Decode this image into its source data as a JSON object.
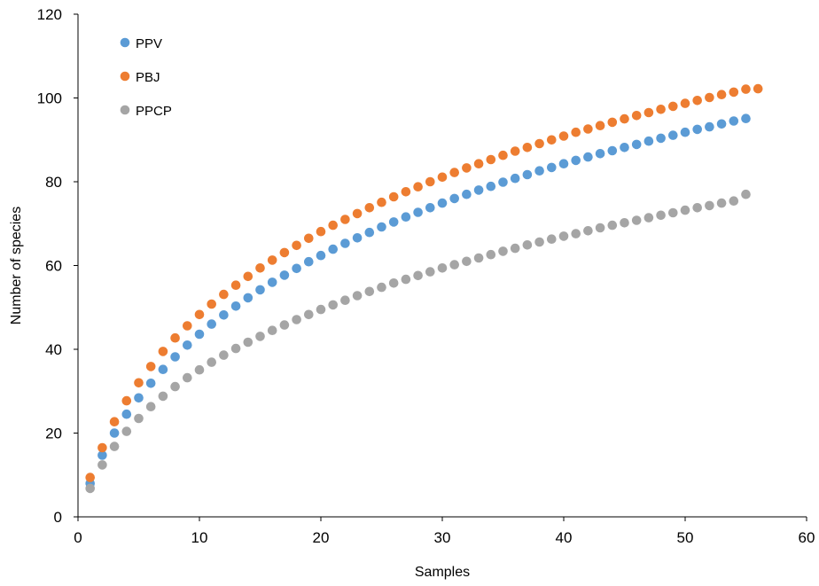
{
  "chart_data": {
    "type": "scatter",
    "xlabel": "Samples",
    "ylabel": "Number of species",
    "xlim": [
      0,
      60
    ],
    "ylim": [
      0,
      120
    ],
    "x_ticks": [
      "0",
      "10",
      "20",
      "30",
      "40",
      "50",
      "60"
    ],
    "y_ticks": [
      "0",
      "20",
      "40",
      "60",
      "80",
      "100",
      "120"
    ],
    "grid": false,
    "legend_position": "top-left",
    "series": [
      {
        "name": "PPV",
        "color": "#5B9BD5",
        "x": [
          1,
          2,
          3,
          4,
          5,
          6,
          7,
          8,
          9,
          10,
          11,
          12,
          13,
          14,
          15,
          16,
          17,
          18,
          19,
          20,
          21,
          22,
          23,
          24,
          25,
          26,
          27,
          28,
          29,
          30,
          31,
          32,
          33,
          34,
          35,
          36,
          37,
          38,
          39,
          40,
          41,
          42,
          43,
          44,
          45,
          46,
          47,
          48,
          49,
          50,
          51,
          52,
          53,
          54,
          55
        ],
        "y": [
          8,
          14.7,
          20,
          24.5,
          28.4,
          31.9,
          35.2,
          38.2,
          41,
          43.6,
          46,
          48.2,
          50.3,
          52.3,
          54.2,
          56,
          57.7,
          59.3,
          60.9,
          62.4,
          63.9,
          65.3,
          66.6,
          67.9,
          69.2,
          70.4,
          71.6,
          72.7,
          73.8,
          74.9,
          76,
          77,
          78,
          78.9,
          79.9,
          80.8,
          81.7,
          82.6,
          83.4,
          84.3,
          85.1,
          85.9,
          86.7,
          87.4,
          88.2,
          88.9,
          89.7,
          90.4,
          91.1,
          91.8,
          92.5,
          93.1,
          93.8,
          94.5,
          95.1
        ]
      },
      {
        "name": "PBJ",
        "color": "#ED7D31",
        "x": [
          1,
          2,
          3,
          4,
          5,
          6,
          7,
          8,
          9,
          10,
          11,
          12,
          13,
          14,
          15,
          16,
          17,
          18,
          19,
          20,
          21,
          22,
          23,
          24,
          25,
          26,
          27,
          28,
          29,
          30,
          31,
          32,
          33,
          34,
          35,
          36,
          37,
          38,
          39,
          40,
          41,
          42,
          43,
          44,
          45,
          46,
          47,
          48,
          49,
          50,
          51,
          52,
          53,
          54,
          55,
          56
        ],
        "y": [
          9.4,
          16.5,
          22.7,
          27.7,
          32,
          35.9,
          39.5,
          42.7,
          45.6,
          48.3,
          50.8,
          53.1,
          55.3,
          57.4,
          59.4,
          61.3,
          63.1,
          64.8,
          66.5,
          68.1,
          69.6,
          71,
          72.4,
          73.8,
          75.1,
          76.4,
          77.6,
          78.8,
          80,
          81.1,
          82.2,
          83.3,
          84.3,
          85.3,
          86.3,
          87.3,
          88.2,
          89.1,
          90,
          90.9,
          91.8,
          92.6,
          93.4,
          94.2,
          95,
          95.8,
          96.5,
          97.3,
          98,
          98.7,
          99.4,
          100.1,
          100.8,
          101.4,
          102.1,
          102.2
        ]
      },
      {
        "name": "PPCP",
        "color": "#A5A5A5",
        "x": [
          1,
          2,
          3,
          4,
          5,
          6,
          7,
          8,
          9,
          10,
          11,
          12,
          13,
          14,
          15,
          16,
          17,
          18,
          19,
          20,
          21,
          22,
          23,
          24,
          25,
          26,
          27,
          28,
          29,
          30,
          31,
          32,
          33,
          34,
          35,
          36,
          37,
          38,
          39,
          40,
          41,
          42,
          43,
          44,
          45,
          46,
          47,
          48,
          49,
          50,
          51,
          52,
          53,
          54,
          55
        ],
        "y": [
          6.8,
          12.4,
          16.8,
          20.4,
          23.5,
          26.3,
          28.8,
          31.1,
          33.2,
          35.1,
          36.9,
          38.6,
          40.2,
          41.7,
          43.1,
          44.5,
          45.8,
          47.1,
          48.3,
          49.5,
          50.6,
          51.7,
          52.8,
          53.8,
          54.8,
          55.8,
          56.7,
          57.6,
          58.5,
          59.4,
          60.2,
          61,
          61.8,
          62.6,
          63.4,
          64.1,
          64.9,
          65.6,
          66.3,
          67,
          67.6,
          68.3,
          69,
          69.6,
          70.2,
          70.8,
          71.4,
          72,
          72.6,
          73.2,
          73.8,
          74.3,
          74.9,
          75.4,
          77
        ]
      }
    ]
  }
}
